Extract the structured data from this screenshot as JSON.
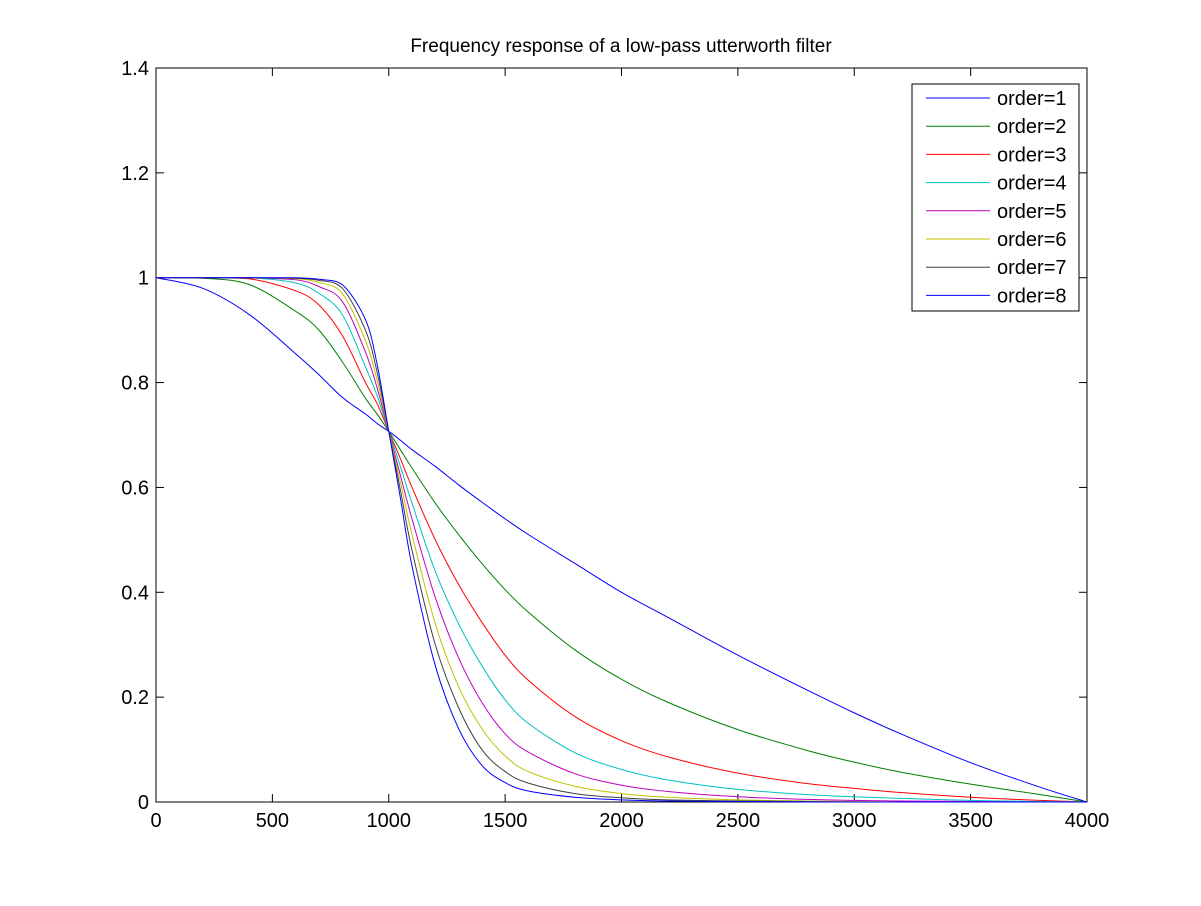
{
  "chart_data": {
    "type": "line",
    "title": "Frequency response of a low-pass utterworth filter",
    "xlabel": "",
    "ylabel": "",
    "xlim": [
      0,
      4000
    ],
    "ylim": [
      0,
      1.4
    ],
    "xticks": [
      0,
      500,
      1000,
      1500,
      2000,
      2500,
      3000,
      3500,
      4000
    ],
    "yticks": [
      0,
      0.2,
      0.4,
      0.6,
      0.8,
      1,
      1.2,
      1.4
    ],
    "xtick_labels": [
      "0",
      "500",
      "1000",
      "1500",
      "2000",
      "2500",
      "3000",
      "3500",
      "4000"
    ],
    "ytick_labels": [
      "0",
      "0.2",
      "0.4",
      "0.6",
      "0.8",
      "1",
      "1.2",
      "1.4"
    ],
    "grid": false,
    "legend_position": "top-right",
    "x": [
      0,
      200,
      400,
      600,
      700,
      800,
      900,
      950,
      1000,
      1050,
      1100,
      1200,
      1300,
      1400,
      1500,
      1600,
      1800,
      2000,
      2200,
      2500,
      2800,
      3000,
      3200,
      3500,
      3800,
      4000
    ],
    "series": [
      {
        "name": "order=1",
        "color": "#0000ff",
        "values": [
          1.0,
          0.98,
          0.93,
          0.855,
          0.815,
          0.772,
          0.74,
          0.722,
          0.707,
          0.69,
          0.672,
          0.64,
          0.605,
          0.572,
          0.54,
          0.51,
          0.455,
          0.4,
          0.352,
          0.28,
          0.213,
          0.17,
          0.13,
          0.075,
          0.028,
          0.0
        ]
      },
      {
        "name": "order=2",
        "color": "#008000",
        "values": [
          1.0,
          0.999,
          0.987,
          0.936,
          0.9,
          0.84,
          0.77,
          0.74,
          0.707,
          0.672,
          0.637,
          0.57,
          0.51,
          0.455,
          0.405,
          0.362,
          0.29,
          0.234,
          0.19,
          0.138,
          0.098,
          0.076,
          0.057,
          0.034,
          0.014,
          0.0
        ]
      },
      {
        "name": "order=3",
        "color": "#ff0000",
        "values": [
          1.0,
          1.0,
          0.998,
          0.975,
          0.948,
          0.89,
          0.8,
          0.76,
          0.707,
          0.655,
          0.6,
          0.5,
          0.415,
          0.343,
          0.28,
          0.232,
          0.163,
          0.117,
          0.086,
          0.055,
          0.035,
          0.026,
          0.018,
          0.009,
          0.003,
          0.0
        ]
      },
      {
        "name": "order=4",
        "color": "#00c0c0",
        "values": [
          1.0,
          1.0,
          1.0,
          0.99,
          0.97,
          0.93,
          0.83,
          0.775,
          0.707,
          0.64,
          0.57,
          0.44,
          0.34,
          0.26,
          0.195,
          0.15,
          0.094,
          0.062,
          0.042,
          0.024,
          0.014,
          0.01,
          0.007,
          0.003,
          0.001,
          0.0
        ]
      },
      {
        "name": "order=5",
        "color": "#c000c0",
        "values": [
          1.0,
          1.0,
          1.0,
          0.996,
          0.983,
          0.955,
          0.858,
          0.79,
          0.707,
          0.623,
          0.54,
          0.39,
          0.275,
          0.19,
          0.13,
          0.095,
          0.054,
          0.032,
          0.02,
          0.01,
          0.005,
          0.003,
          0.002,
          0.001,
          0.0,
          0.0
        ]
      },
      {
        "name": "order=6",
        "color": "#c0c000",
        "values": [
          1.0,
          1.0,
          1.0,
          0.998,
          0.991,
          0.97,
          0.88,
          0.805,
          0.707,
          0.61,
          0.51,
          0.34,
          0.22,
          0.14,
          0.088,
          0.058,
          0.03,
          0.016,
          0.009,
          0.004,
          0.002,
          0.001,
          0.0,
          0.0,
          0.0,
          0.0
        ]
      },
      {
        "name": "order=7",
        "color": "#404040",
        "values": [
          1.0,
          1.0,
          1.0,
          0.999,
          0.995,
          0.98,
          0.9,
          0.82,
          0.707,
          0.595,
          0.48,
          0.3,
          0.18,
          0.1,
          0.058,
          0.036,
          0.016,
          0.008,
          0.004,
          0.002,
          0.001,
          0.0,
          0.0,
          0.0,
          0.0,
          0.0
        ]
      },
      {
        "name": "order=8",
        "color": "#0000ff",
        "values": [
          1.0,
          1.0,
          1.0,
          1.0,
          0.997,
          0.987,
          0.92,
          0.835,
          0.707,
          0.58,
          0.45,
          0.26,
          0.14,
          0.07,
          0.037,
          0.021,
          0.009,
          0.004,
          0.002,
          0.001,
          0.0,
          0.0,
          0.0,
          0.0,
          0.0,
          0.0
        ]
      }
    ]
  }
}
